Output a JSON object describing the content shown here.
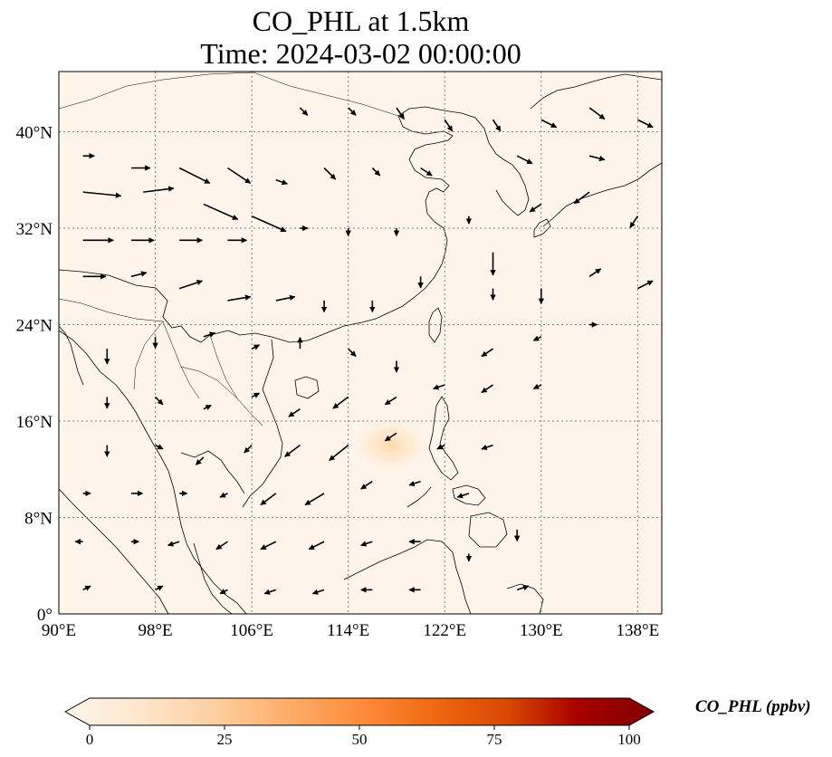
{
  "title": {
    "line1": "CO_PHL at 1.5km",
    "line2": "Time: 2024-03-02 00:00:00"
  },
  "map": {
    "extent": {
      "lon_min": 90,
      "lon_max": 140,
      "lat_min": 0,
      "lat_max": 45
    },
    "background_color": "#fff5eb",
    "plume_color": "#fddfb8",
    "coastline_color": "#000000",
    "gridline_color": "#808080",
    "lon_ticks": [
      {
        "value": 90,
        "label": "90°E"
      },
      {
        "value": 98,
        "label": "98°E"
      },
      {
        "value": 106,
        "label": "106°E"
      },
      {
        "value": 114,
        "label": "114°E"
      },
      {
        "value": 122,
        "label": "122°E"
      },
      {
        "value": 130,
        "label": "130°E"
      },
      {
        "value": 138,
        "label": "138°E"
      }
    ],
    "lat_ticks": [
      {
        "value": 0,
        "label": "0°"
      },
      {
        "value": 8,
        "label": "8°N"
      },
      {
        "value": 16,
        "label": "16°N"
      },
      {
        "value": 24,
        "label": "24°N"
      },
      {
        "value": 32,
        "label": "32°N"
      },
      {
        "value": 40,
        "label": "40°N"
      }
    ],
    "plume_center": {
      "lon": 117.5,
      "lat": 14.0
    },
    "wind_vectors": [
      {
        "lon": 92,
        "lat": 38,
        "u": 3,
        "v": 0
      },
      {
        "lon": 96,
        "lat": 37,
        "u": 5,
        "v": 0
      },
      {
        "lon": 100,
        "lat": 37,
        "u": 8,
        "v": -4
      },
      {
        "lon": 104,
        "lat": 37,
        "u": 6,
        "v": -4
      },
      {
        "lon": 108,
        "lat": 36,
        "u": 3,
        "v": -1
      },
      {
        "lon": 112,
        "lat": 37,
        "u": 3,
        "v": -3
      },
      {
        "lon": 116,
        "lat": 37,
        "u": 2,
        "v": -2
      },
      {
        "lon": 120,
        "lat": 37,
        "u": 3,
        "v": -2
      },
      {
        "lon": 92,
        "lat": 35,
        "u": 10,
        "v": -1
      },
      {
        "lon": 97,
        "lat": 35,
        "u": 8,
        "v": 1
      },
      {
        "lon": 102,
        "lat": 34,
        "u": 9,
        "v": -4
      },
      {
        "lon": 106,
        "lat": 33,
        "u": 9,
        "v": -4
      },
      {
        "lon": 92,
        "lat": 31,
        "u": 8,
        "v": 0
      },
      {
        "lon": 96,
        "lat": 31,
        "u": 6,
        "v": 0
      },
      {
        "lon": 100,
        "lat": 31,
        "u": 6,
        "v": 0
      },
      {
        "lon": 104,
        "lat": 31,
        "u": 5,
        "v": 0
      },
      {
        "lon": 110,
        "lat": 32,
        "u": 2,
        "v": 0
      },
      {
        "lon": 114,
        "lat": 32,
        "u": 0,
        "v": -2
      },
      {
        "lon": 118,
        "lat": 32,
        "u": 0,
        "v": -2
      },
      {
        "lon": 124,
        "lat": 33,
        "u": 0,
        "v": -2
      },
      {
        "lon": 126,
        "lat": 30,
        "u": 0,
        "v": -6
      },
      {
        "lon": 130,
        "lat": 34,
        "u": -3,
        "v": -2
      },
      {
        "lon": 134,
        "lat": 35,
        "u": -4,
        "v": -3
      },
      {
        "lon": 138,
        "lat": 33,
        "u": -2,
        "v": -3
      },
      {
        "lon": 92,
        "lat": 28,
        "u": 6,
        "v": 0
      },
      {
        "lon": 96,
        "lat": 28,
        "u": 4,
        "v": 1
      },
      {
        "lon": 100,
        "lat": 27,
        "u": 6,
        "v": 2
      },
      {
        "lon": 104,
        "lat": 26,
        "u": 6,
        "v": 1
      },
      {
        "lon": 108,
        "lat": 26,
        "u": 5,
        "v": 1
      },
      {
        "lon": 112,
        "lat": 26,
        "u": 0,
        "v": -3
      },
      {
        "lon": 116,
        "lat": 26,
        "u": 0,
        "v": -3
      },
      {
        "lon": 120,
        "lat": 28,
        "u": 0,
        "v": -3
      },
      {
        "lon": 126,
        "lat": 27,
        "u": 0,
        "v": -3
      },
      {
        "lon": 130,
        "lat": 27,
        "u": 0,
        "v": -4
      },
      {
        "lon": 134,
        "lat": 28,
        "u": 3,
        "v": 2
      },
      {
        "lon": 138,
        "lat": 27,
        "u": 4,
        "v": 2
      },
      {
        "lon": 94,
        "lat": 22,
        "u": 0,
        "v": -4
      },
      {
        "lon": 98,
        "lat": 23,
        "u": 0,
        "v": -3
      },
      {
        "lon": 102,
        "lat": 23,
        "u": 3,
        "v": 1
      },
      {
        "lon": 106,
        "lat": 22,
        "u": 2,
        "v": 1
      },
      {
        "lon": 110,
        "lat": 22,
        "u": 0,
        "v": 3
      },
      {
        "lon": 114,
        "lat": 22,
        "u": 2,
        "v": -2
      },
      {
        "lon": 118,
        "lat": 21,
        "u": 0,
        "v": -3
      },
      {
        "lon": 126,
        "lat": 22,
        "u": -3,
        "v": -2
      },
      {
        "lon": 130,
        "lat": 23,
        "u": -2,
        "v": -1
      },
      {
        "lon": 134,
        "lat": 24,
        "u": 2,
        "v": 0
      },
      {
        "lon": 94,
        "lat": 18,
        "u": 0,
        "v": -3
      },
      {
        "lon": 98,
        "lat": 18,
        "u": 2,
        "v": -2
      },
      {
        "lon": 102,
        "lat": 17,
        "u": 2,
        "v": 1
      },
      {
        "lon": 106,
        "lat": 18,
        "u": 2,
        "v": 1
      },
      {
        "lon": 110,
        "lat": 17,
        "u": -3,
        "v": -2
      },
      {
        "lon": 114,
        "lat": 18,
        "u": -4,
        "v": -3
      },
      {
        "lon": 118,
        "lat": 18,
        "u": -3,
        "v": -2
      },
      {
        "lon": 122,
        "lat": 19,
        "u": -3,
        "v": -1
      },
      {
        "lon": 126,
        "lat": 19,
        "u": -3,
        "v": -2
      },
      {
        "lon": 130,
        "lat": 19,
        "u": -2,
        "v": -1
      },
      {
        "lon": 94,
        "lat": 14,
        "u": 0,
        "v": -3
      },
      {
        "lon": 98,
        "lat": 14,
        "u": 2,
        "v": -1
      },
      {
        "lon": 102,
        "lat": 13,
        "u": -2,
        "v": -2
      },
      {
        "lon": 106,
        "lat": 14,
        "u": -2,
        "v": -2
      },
      {
        "lon": 110,
        "lat": 14,
        "u": -4,
        "v": -3
      },
      {
        "lon": 114,
        "lat": 14,
        "u": -5,
        "v": -4
      },
      {
        "lon": 118,
        "lat": 15,
        "u": -3,
        "v": -2
      },
      {
        "lon": 122,
        "lat": 14,
        "u": -2,
        "v": -1
      },
      {
        "lon": 126,
        "lat": 14,
        "u": -3,
        "v": -1
      },
      {
        "lon": 92,
        "lat": 10,
        "u": 2,
        "v": 0
      },
      {
        "lon": 96,
        "lat": 10,
        "u": 3,
        "v": 0
      },
      {
        "lon": 100,
        "lat": 10,
        "u": 2,
        "v": 0
      },
      {
        "lon": 104,
        "lat": 10,
        "u": -2,
        "v": -1
      },
      {
        "lon": 108,
        "lat": 10,
        "u": -4,
        "v": -3
      },
      {
        "lon": 112,
        "lat": 10,
        "u": -5,
        "v": -3
      },
      {
        "lon": 116,
        "lat": 11,
        "u": -3,
        "v": -2
      },
      {
        "lon": 120,
        "lat": 11,
        "u": -3,
        "v": -1
      },
      {
        "lon": 124,
        "lat": 10,
        "u": -3,
        "v": -1
      },
      {
        "lon": 92,
        "lat": 6,
        "u": -2,
        "v": 0
      },
      {
        "lon": 96,
        "lat": 6,
        "u": 2,
        "v": 0
      },
      {
        "lon": 100,
        "lat": 6,
        "u": -3,
        "v": -1
      },
      {
        "lon": 104,
        "lat": 6,
        "u": -3,
        "v": -2
      },
      {
        "lon": 108,
        "lat": 6,
        "u": -4,
        "v": -2
      },
      {
        "lon": 112,
        "lat": 6,
        "u": -4,
        "v": -2
      },
      {
        "lon": 116,
        "lat": 6,
        "u": -3,
        "v": -1
      },
      {
        "lon": 120,
        "lat": 6,
        "u": -3,
        "v": 0
      },
      {
        "lon": 124,
        "lat": 5,
        "u": 0,
        "v": -2
      },
      {
        "lon": 128,
        "lat": 7,
        "u": 0,
        "v": -3
      },
      {
        "lon": 92,
        "lat": 2,
        "u": 2,
        "v": 1
      },
      {
        "lon": 98,
        "lat": 2,
        "u": 2,
        "v": 1
      },
      {
        "lon": 104,
        "lat": 2,
        "u": -2,
        "v": -1
      },
      {
        "lon": 108,
        "lat": 2,
        "u": -3,
        "v": -1
      },
      {
        "lon": 112,
        "lat": 2,
        "u": -3,
        "v": -1
      },
      {
        "lon": 116,
        "lat": 2,
        "u": -3,
        "v": 0
      },
      {
        "lon": 120,
        "lat": 2,
        "u": -3,
        "v": 0
      },
      {
        "lon": 128,
        "lat": 2,
        "u": 3,
        "v": 1
      },
      {
        "lon": 122,
        "lat": 41,
        "u": 2,
        "v": -3
      },
      {
        "lon": 126,
        "lat": 41,
        "u": 2,
        "v": -3
      },
      {
        "lon": 130,
        "lat": 41,
        "u": 4,
        "v": -2
      },
      {
        "lon": 134,
        "lat": 42,
        "u": 4,
        "v": -3
      },
      {
        "lon": 138,
        "lat": 41,
        "u": 4,
        "v": -2
      },
      {
        "lon": 110,
        "lat": 42,
        "u": 2,
        "v": -2
      },
      {
        "lon": 114,
        "lat": 42,
        "u": 2,
        "v": -2
      },
      {
        "lon": 118,
        "lat": 42,
        "u": 2,
        "v": -3
      },
      {
        "lon": 128,
        "lat": 38,
        "u": 4,
        "v": -2
      },
      {
        "lon": 134,
        "lat": 38,
        "u": 4,
        "v": -1
      }
    ]
  },
  "colorbar": {
    "label": "CO_PHL (ppbv)",
    "min": 0,
    "max": 100,
    "colors": [
      "#fff5eb",
      "#fee6ce",
      "#fdd0a2",
      "#fdae6b",
      "#fd8d3c",
      "#f16913",
      "#d94801",
      "#a60000",
      "#7f0000"
    ],
    "ticks": [
      {
        "value": 0,
        "label": "0"
      },
      {
        "value": 25,
        "label": "25"
      },
      {
        "value": 50,
        "label": "50"
      },
      {
        "value": 75,
        "label": "75"
      },
      {
        "value": 100,
        "label": "100"
      }
    ]
  }
}
